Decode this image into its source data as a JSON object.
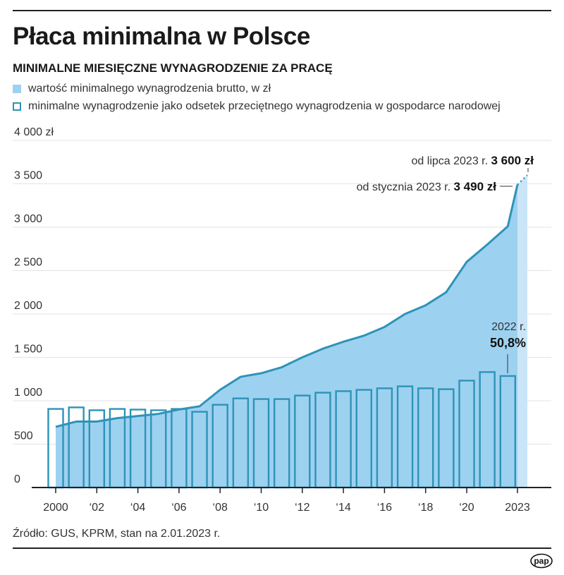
{
  "title": "Płaca minimalna w Polsce",
  "subtitle": "MINIMALNE MIESIĘCZNE WYNAGRODZENIE ZA PRACĘ",
  "legend": [
    {
      "label": "wartość minimalnego wynagrodzenia brutto, w zł",
      "style": "filled"
    },
    {
      "label": "minimalne wynagrodzenie jako odsetek przeciętnego wynagrodzenia w gospodarce narodowej",
      "style": "outline"
    }
  ],
  "source": "Źródło: GUS, KPRM, stan na 2.01.2023 r.",
  "logo": "pap",
  "colors": {
    "area": "#9dd1f0",
    "area_light": "#c9e5f7",
    "line": "#2e93b8",
    "grid": "#e3e3e3",
    "axis": "#222222"
  },
  "chart_data": {
    "type": "area+bar",
    "ylim": [
      0,
      4000
    ],
    "yticks": [
      0,
      500,
      1000,
      1500,
      2000,
      2500,
      3000,
      3500,
      4000
    ],
    "ytick_labels": [
      "0",
      "500",
      "1 000",
      "1 500",
      "2 000",
      "2 500",
      "3 000",
      "3 500",
      "4 000 zł"
    ],
    "xtick_labels": [
      {
        "year": 2000,
        "label": "2000"
      },
      {
        "year": 2002,
        "label": "‘02"
      },
      {
        "year": 2004,
        "label": "‘04"
      },
      {
        "year": 2006,
        "label": "‘06"
      },
      {
        "year": 2008,
        "label": "‘08"
      },
      {
        "year": 2010,
        "label": "‘10"
      },
      {
        "year": 2012,
        "label": "‘12"
      },
      {
        "year": 2014,
        "label": "‘14"
      },
      {
        "year": 2016,
        "label": "‘16"
      },
      {
        "year": 2018,
        "label": "‘18"
      },
      {
        "year": 2020,
        "label": "‘20"
      },
      {
        "year": 2023,
        "label": "2023"
      }
    ],
    "grid": true,
    "series": [
      {
        "name": "wartość minimalnego wynagrodzenia brutto, w zł",
        "type": "area",
        "x": [
          2000,
          2001,
          2002,
          2003,
          2004,
          2005,
          2006,
          2007,
          2008,
          2009,
          2010,
          2011,
          2012,
          2013,
          2014,
          2015,
          2016,
          2017,
          2018,
          2019,
          2020,
          2021,
          2022,
          "2023-01"
        ],
        "values": [
          700,
          760,
          760,
          800,
          824,
          849,
          899,
          936,
          1126,
          1276,
          1317,
          1386,
          1500,
          1600,
          1680,
          1750,
          1850,
          2000,
          2100,
          2250,
          2600,
          2800,
          3010,
          3490
        ],
        "projection": {
          "x": "2023-07",
          "value": 3600
        }
      },
      {
        "name": "minimalne wynagrodzenie jako odsetek przeciętnego wynagrodzenia w gospodarce narodowej",
        "type": "bar",
        "unit": "%",
        "x": [
          2000,
          2001,
          2002,
          2003,
          2004,
          2005,
          2006,
          2007,
          2008,
          2009,
          2010,
          2011,
          2012,
          2013,
          2014,
          2015,
          2016,
          2017,
          2018,
          2019,
          2020,
          2021,
          2022
        ],
        "values": [
          35.8,
          36.5,
          35.2,
          35.8,
          35.5,
          35.2,
          35.8,
          34.5,
          37.7,
          40.6,
          40.3,
          40.3,
          41.9,
          43.2,
          43.9,
          44.5,
          45.2,
          46.1,
          45.2,
          44.8,
          48.7,
          52.6,
          50.8
        ]
      }
    ],
    "annotations": {
      "jul": {
        "prefix": "od lipca 2023 r. ",
        "value": "3 600 zł"
      },
      "jan": {
        "prefix": "od stycznia 2023 r. ",
        "value": "3 490 zł"
      },
      "pct_year": "2022 r.",
      "pct_value": "50,8%"
    }
  }
}
